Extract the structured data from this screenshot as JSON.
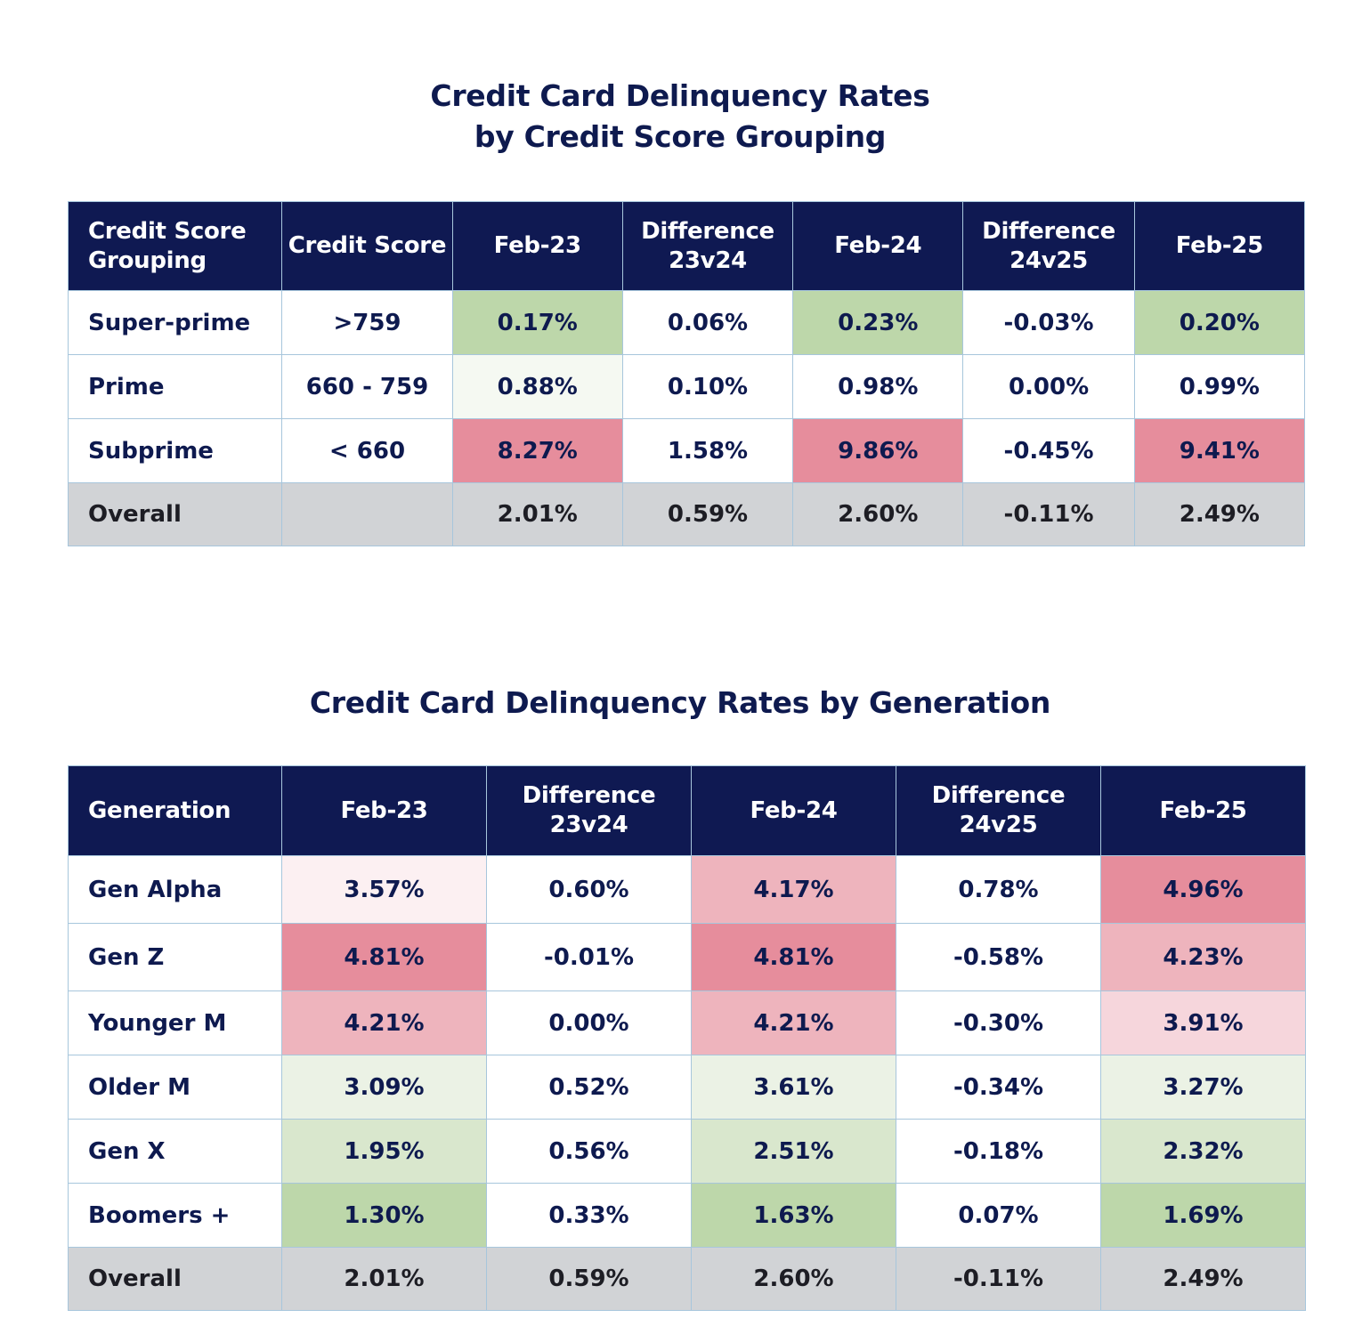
{
  "table1": {
    "title_line1": "Credit Card Delinquency Rates",
    "title_line2": "by Credit Score Grouping",
    "headers": [
      "Credit Score Grouping",
      "Credit Score",
      "Feb-23",
      "Difference 23v24",
      "Feb-24",
      "Difference 24v25",
      "Feb-25"
    ],
    "header_lines": [
      [
        "Credit Score",
        "Grouping"
      ],
      [
        "Credit Score"
      ],
      [
        "Feb-23"
      ],
      [
        "Difference",
        "23v24"
      ],
      [
        "Feb-24"
      ],
      [
        "Difference",
        "24v25"
      ],
      [
        "Feb-25"
      ]
    ],
    "rows": [
      {
        "label": "Super-prime",
        "values": [
          ">759",
          "0.17%",
          "0.06%",
          "0.23%",
          "-0.03%",
          "0.20%"
        ],
        "colors": [
          "#ffffff",
          "#bdd7aa",
          "#ffffff",
          "#bdd7aa",
          "#ffffff",
          "#bdd7aa"
        ]
      },
      {
        "label": "Prime",
        "values": [
          "660 - 759",
          "0.88%",
          "0.10%",
          "0.98%",
          "0.00%",
          "0.99%"
        ],
        "colors": [
          "#ffffff",
          "#f5f9f2",
          "#ffffff",
          "#ffffff",
          "#ffffff",
          "#ffffff"
        ]
      },
      {
        "label": "Subprime",
        "values": [
          "< 660",
          "8.27%",
          "1.58%",
          "9.86%",
          "-0.45%",
          "9.41%"
        ],
        "colors": [
          "#ffffff",
          "#e68d9c",
          "#ffffff",
          "#e68d9c",
          "#ffffff",
          "#e68d9c"
        ]
      },
      {
        "label": "Overall",
        "values": [
          "",
          "2.01%",
          "0.59%",
          "2.60%",
          "-0.11%",
          "2.49%"
        ],
        "overall": true
      }
    ]
  },
  "table2": {
    "title": "Credit Card Delinquency Rates by Generation",
    "headers": [
      "Generation",
      "Feb-23",
      "Difference 23v24",
      "Feb-24",
      "Difference 24v25",
      "Feb-25"
    ],
    "header_lines": [
      [
        "Generation"
      ],
      [
        "Feb-23"
      ],
      [
        "Difference",
        "23v24"
      ],
      [
        "Feb-24"
      ],
      [
        "Difference",
        "24v25"
      ],
      [
        "Feb-25"
      ]
    ],
    "rows": [
      {
        "label": "Gen Alpha",
        "values": [
          "3.57%",
          "0.60%",
          "4.17%",
          "0.78%",
          "4.96%"
        ],
        "colors": [
          "#fcf0f2",
          "#ffffff",
          "#eeb4bd",
          "#ffffff",
          "#e68d9c"
        ]
      },
      {
        "label": "Gen Z",
        "values": [
          "4.81%",
          "-0.01%",
          "4.81%",
          "-0.58%",
          "4.23%"
        ],
        "colors": [
          "#e68d9c",
          "#ffffff",
          "#e68d9c",
          "#ffffff",
          "#eeb4bd"
        ]
      },
      {
        "label": "Younger M",
        "values": [
          "4.21%",
          "0.00%",
          "4.21%",
          "-0.30%",
          "3.91%"
        ],
        "colors": [
          "#eeb4bd",
          "#ffffff",
          "#eeb4bd",
          "#ffffff",
          "#f6d6dc"
        ]
      },
      {
        "label": "Older M",
        "values": [
          "3.09%",
          "0.52%",
          "3.61%",
          "-0.34%",
          "3.27%"
        ],
        "colors": [
          "#ebf2e5",
          "#ffffff",
          "#ebf2e5",
          "#ffffff",
          "#ebf2e5"
        ]
      },
      {
        "label": "Gen X",
        "values": [
          "1.95%",
          "0.56%",
          "2.51%",
          "-0.18%",
          "2.32%"
        ],
        "colors": [
          "#d9e7cd",
          "#ffffff",
          "#d9e7cd",
          "#ffffff",
          "#d9e7cd"
        ]
      },
      {
        "label": "Boomers +",
        "values": [
          "1.30%",
          "0.33%",
          "1.63%",
          "0.07%",
          "1.69%"
        ],
        "colors": [
          "#bdd7aa",
          "#ffffff",
          "#bdd7aa",
          "#ffffff",
          "#bdd7aa"
        ]
      },
      {
        "label": "Overall",
        "values": [
          "2.01%",
          "0.59%",
          "2.60%",
          "-0.11%",
          "2.49%"
        ],
        "overall": true
      }
    ]
  },
  "colors": {
    "header_bg": "#0f1952",
    "title_text": "#0e1a4f",
    "overall_bg": "#d1d3d6",
    "border": "#a7c6dc"
  }
}
